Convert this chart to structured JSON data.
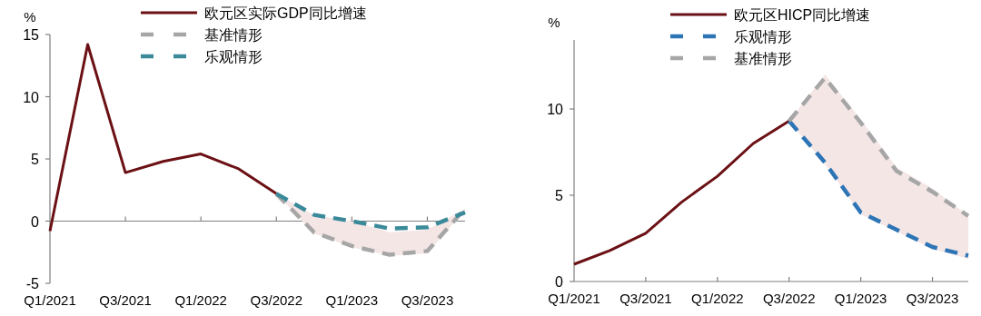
{
  "chart_data": [
    {
      "type": "line",
      "ylabel": "%",
      "categories": [
        "Q1/2021",
        null,
        "Q3/2021",
        null,
        "Q1/2022",
        null,
        "Q3/2022",
        null,
        "Q1/2023",
        null,
        "Q3/2023",
        null
      ],
      "ylim": [
        -5,
        15
      ],
      "yticks": [
        -5,
        0,
        5,
        10,
        15
      ],
      "legend": "top",
      "series": [
        {
          "name": "欧元区实际GDP同比增速",
          "color": "#6b1014",
          "line_style": "solid",
          "values": [
            -0.8,
            14.2,
            3.9,
            4.8,
            5.4,
            4.2,
            2.2,
            null,
            null,
            null,
            null,
            null
          ]
        },
        {
          "name": "基准情形",
          "color": "#a6a6a6",
          "line_style": "dashed",
          "values": [
            null,
            null,
            null,
            null,
            null,
            null,
            2.2,
            -0.9,
            -2.0,
            -2.7,
            -2.4,
            1.0
          ],
          "lower": [
            null,
            null,
            null,
            null,
            null,
            null,
            2.2,
            -1.0,
            -2.1,
            -2.8,
            -2.6,
            0.9
          ],
          "upper": [
            null,
            null,
            null,
            null,
            null,
            null,
            2.2,
            0.5,
            0.0,
            -0.9,
            -0.7,
            1.0
          ]
        },
        {
          "name": "乐观情形",
          "color": "#3b8a9a",
          "line_style": "dashed",
          "values": [
            null,
            null,
            null,
            null,
            null,
            null,
            2.2,
            0.5,
            0.0,
            -0.6,
            -0.5,
            0.7
          ]
        }
      ]
    },
    {
      "type": "line",
      "ylabel": "%",
      "categories": [
        "Q1/2021",
        null,
        "Q3/2021",
        null,
        "Q1/2022",
        null,
        "Q3/2022",
        null,
        "Q1/2023",
        null,
        "Q3/2023",
        null
      ],
      "ylim": [
        0,
        14
      ],
      "yticks": [
        0,
        5,
        10
      ],
      "legend": "top",
      "series": [
        {
          "name": "欧元区HICP同比增速",
          "color": "#6b1014",
          "line_style": "solid",
          "values": [
            1.0,
            1.8,
            2.8,
            4.6,
            6.1,
            8.0,
            9.3,
            null,
            null,
            null,
            null,
            null
          ]
        },
        {
          "name": "乐观情形",
          "color": "#2e75b6",
          "line_style": "dashed",
          "values": [
            null,
            null,
            null,
            null,
            null,
            null,
            9.3,
            6.9,
            4.0,
            3.0,
            2.0,
            1.5
          ]
        },
        {
          "name": "基准情形",
          "color": "#a6a6a6",
          "line_style": "dashed",
          "values": [
            null,
            null,
            null,
            null,
            null,
            null,
            9.3,
            11.8,
            9.2,
            6.4,
            5.2,
            3.8
          ],
          "lower": [
            null,
            null,
            null,
            null,
            null,
            null,
            9.3,
            6.8,
            3.9,
            2.9,
            1.9,
            1.3
          ],
          "upper": [
            null,
            null,
            null,
            null,
            null,
            null,
            9.3,
            12.0,
            9.4,
            6.6,
            5.4,
            3.8
          ]
        }
      ]
    }
  ]
}
